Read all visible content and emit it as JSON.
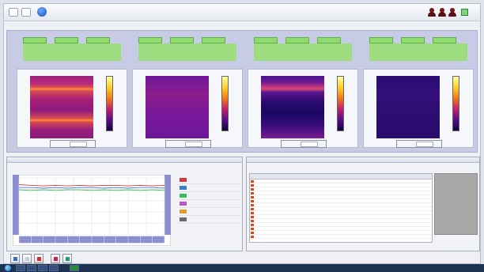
{
  "toolbar": {
    "icons": [
      "back-icon",
      "forward-icon",
      "help-icon",
      "user-icon",
      "user-icon",
      "user-icon",
      "network-icon"
    ],
    "clock": [
      "",
      ""
    ]
  },
  "section_label": "",
  "panels": [
    {
      "tabs": [
        "",
        "",
        ""
      ],
      "viewer_title": "",
      "mode_label": "",
      "mode_value": "",
      "colorbar": {
        "top": "",
        "bottom": ""
      }
    },
    {
      "tabs": [
        "",
        "",
        ""
      ],
      "viewer_title": "",
      "mode_label": "",
      "mode_value": "",
      "colorbar": {
        "top": "",
        "bottom": ""
      }
    },
    {
      "tabs": [
        "",
        "",
        ""
      ],
      "viewer_title": "",
      "mode_label": "",
      "mode_value": "",
      "colorbar": {
        "top": "",
        "bottom": ""
      }
    },
    {
      "tabs": [
        "",
        "",
        ""
      ],
      "viewer_title": "",
      "mode_label": "",
      "mode_value": "",
      "colorbar": {
        "top": "",
        "bottom": ""
      }
    }
  ],
  "trend": {
    "header_left": "",
    "header_right": "",
    "title": "",
    "legend": [
      {
        "color": "#d23a3a",
        "text": ""
      },
      {
        "color": "#3a7fd2",
        "text": ""
      },
      {
        "color": "#3bbd5d",
        "text": ""
      },
      {
        "color": "#b45cc8",
        "text": ""
      },
      {
        "color": "#d9a12a",
        "text": ""
      },
      {
        "color": "#6b6b6b",
        "text": ""
      }
    ]
  },
  "chart_data": {
    "type": "line",
    "title": "",
    "xlabel": "",
    "ylabel": "",
    "series": [
      {
        "color": "#d23a3a",
        "values": [
          0.88,
          0.87,
          0.86,
          0.87,
          0.86,
          0.87,
          0.86,
          0.87,
          0.87,
          0.86,
          0.87,
          0.86,
          0.87
        ]
      },
      {
        "color": "#3a7fd2",
        "values": [
          0.83,
          0.83,
          0.82,
          0.83,
          0.82,
          0.83,
          0.83,
          0.82,
          0.83,
          0.82,
          0.83,
          0.83,
          0.82
        ]
      },
      {
        "color": "#3bbd5d",
        "values": [
          0.79,
          0.78,
          0.79,
          0.78,
          0.79,
          0.79,
          0.78,
          0.79,
          0.78,
          0.79,
          0.78,
          0.79,
          0.78
        ]
      }
    ],
    "ylim": [
      0,
      1
    ],
    "grid": true
  },
  "events": {
    "header_left": "",
    "header_right": "",
    "toolbar_text": "",
    "columns": [
      "",
      "",
      "",
      "",
      "",
      "",
      "",
      ""
    ],
    "rows_count_label": "",
    "rows": [
      [
        "",
        "",
        "",
        "",
        "",
        "",
        "",
        ""
      ],
      [
        "",
        "",
        "",
        "",
        "",
        "",
        "",
        ""
      ],
      [
        "",
        "",
        "",
        "",
        "",
        "",
        "",
        ""
      ],
      [
        "",
        "",
        "",
        "",
        "",
        "",
        "",
        ""
      ],
      [
        "",
        "",
        "",
        "",
        "",
        "",
        "",
        ""
      ],
      [
        "",
        "",
        "",
        "",
        "",
        "",
        "",
        ""
      ],
      [
        "",
        "",
        "",
        "",
        "",
        "",
        "",
        ""
      ],
      [
        "",
        "",
        "",
        "",
        "",
        "",
        "",
        ""
      ],
      [
        "",
        "",
        "",
        "",
        "",
        "",
        "",
        ""
      ],
      [
        "",
        "",
        "",
        "",
        "",
        "",
        "",
        ""
      ],
      [
        "",
        "",
        "",
        "",
        "",
        "",
        "",
        ""
      ],
      [
        "",
        "",
        "",
        "",
        "",
        "",
        "",
        ""
      ],
      [
        "",
        "",
        "",
        "",
        "",
        "",
        "",
        ""
      ],
      [
        "",
        "",
        "",
        "",
        "",
        "",
        "",
        ""
      ],
      [
        "",
        "",
        "",
        "",
        "",
        "",
        "",
        ""
      ]
    ]
  },
  "taskbar": {
    "tray": ""
  }
}
